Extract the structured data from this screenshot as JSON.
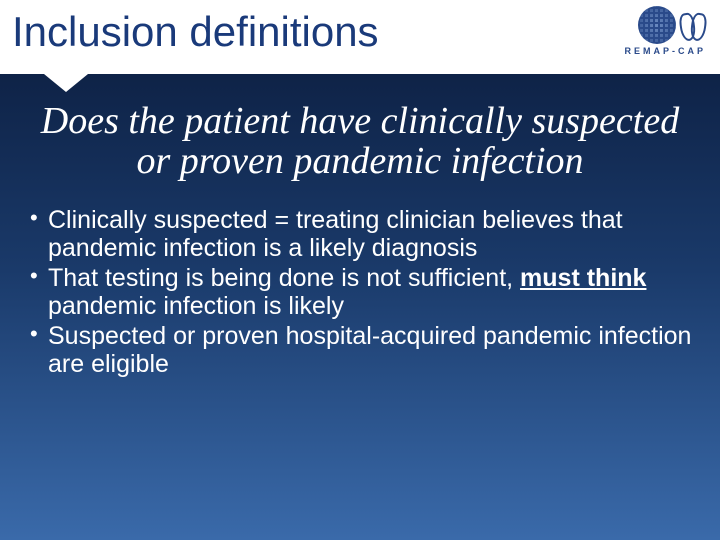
{
  "title": "Inclusion definitions",
  "logo_label": "REMAP-CAP",
  "question": "Does the patient have clinically suspected or proven pandemic infection",
  "bullets": [
    {
      "pre": "Clinically suspected = treating clinician believes that pandemic infection is a likely diagnosis"
    },
    {
      "pre": "That testing is being done is not sufficient, ",
      "ub": "must think ",
      "post": "pandemic infection is likely"
    },
    {
      "pre": "Suspected or proven hospital-acquired pandemic infection are eligible"
    }
  ]
}
